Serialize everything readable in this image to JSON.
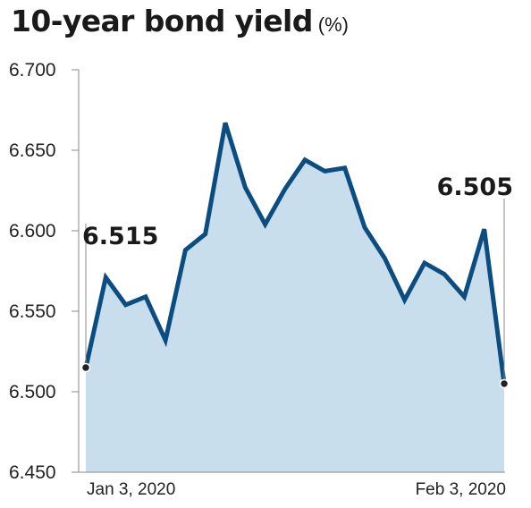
{
  "chart_data": {
    "type": "area",
    "title": "10-year bond yield",
    "unit": "(%)",
    "x_tick_labels": [
      "Jan 3, 2020",
      "Feb 3, 2020"
    ],
    "y_ticks": [
      "6.700",
      "6.650",
      "6.600",
      "6.550",
      "6.500",
      "6.450"
    ],
    "ylim": [
      6.45,
      6.7
    ],
    "values": [
      6.515,
      6.571,
      6.554,
      6.559,
      6.532,
      6.588,
      6.598,
      6.667,
      6.627,
      6.604,
      6.626,
      6.644,
      6.637,
      6.639,
      6.602,
      6.583,
      6.557,
      6.58,
      6.573,
      6.559,
      6.601,
      6.505
    ],
    "annotations": [
      {
        "index": 0,
        "label": "6.515"
      },
      {
        "index": 21,
        "label": "6.505"
      }
    ],
    "grid": false,
    "legend": "none",
    "colors": {
      "line": "#0b4d80",
      "fill": "#c9deed",
      "marker": "#222222",
      "axis": "#888888"
    }
  }
}
